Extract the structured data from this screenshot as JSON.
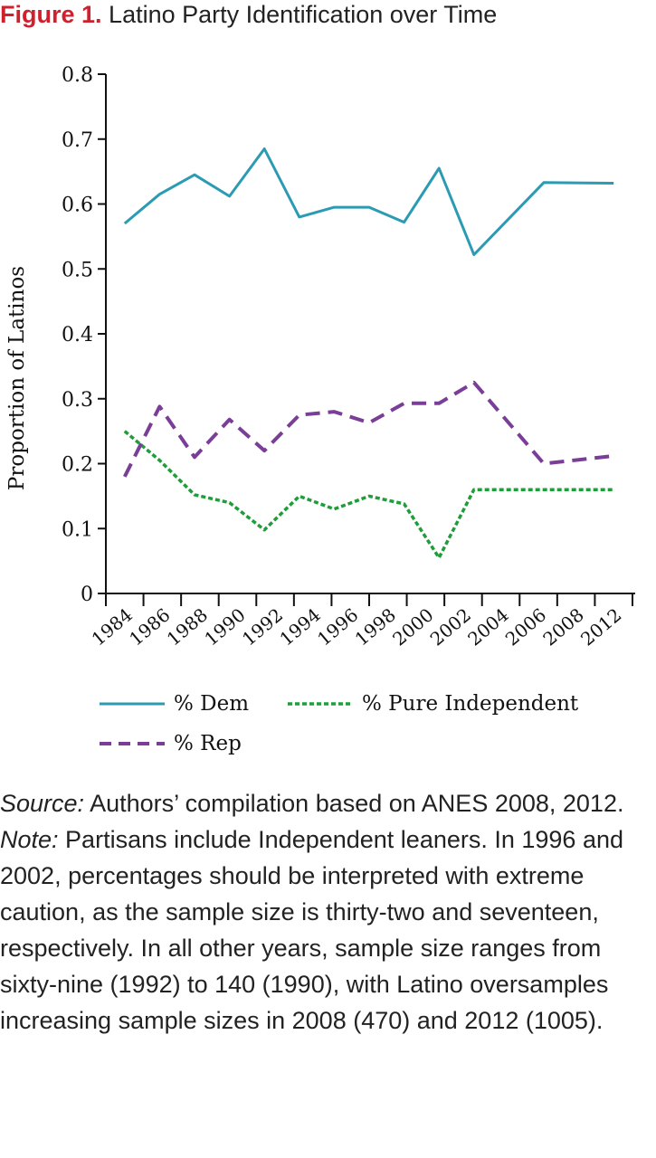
{
  "figure": {
    "label": "Figure 1.",
    "title": "Latino Party Identification over Time"
  },
  "colors": {
    "dem": "#2a9bb2",
    "independent": "#1f9d3a",
    "rep": "#7a3d98",
    "title_label": "#d0202e",
    "axis": "#111111"
  },
  "chart_data": {
    "type": "line",
    "title": "Latino Party Identification over Time",
    "xlabel": "",
    "ylabel": "Proportion of Latinos",
    "xlim": [
      1984,
      2012
    ],
    "ylim": [
      0,
      0.8
    ],
    "x_ticks": [
      "1984",
      "1986",
      "1988",
      "1990",
      "1992",
      "1994",
      "1996",
      "1998",
      "2000",
      "2002",
      "2004",
      "2006",
      "2008",
      "2012"
    ],
    "y_ticks": [
      "0",
      "0.1",
      "0.2",
      "0.3",
      "0.4",
      "0.5",
      "0.6",
      "0.7",
      "0.8"
    ],
    "x": [
      1984,
      1986,
      1988,
      1990,
      1992,
      1994,
      1996,
      1998,
      2000,
      2002,
      2004,
      2008,
      2012
    ],
    "grid": false,
    "legend_position": "bottom",
    "series": [
      {
        "name": "% Dem",
        "style": "solid",
        "color": "#2a9bb2",
        "values": [
          0.57,
          0.615,
          0.645,
          0.612,
          0.685,
          0.58,
          0.595,
          0.595,
          0.572,
          0.655,
          0.522,
          0.633,
          0.632
        ]
      },
      {
        "name": "% Pure Independent",
        "style": "dotted",
        "color": "#1f9d3a",
        "values": [
          0.25,
          0.205,
          0.152,
          0.14,
          0.098,
          0.15,
          0.13,
          0.15,
          0.138,
          0.055,
          0.16,
          0.16,
          0.16
        ]
      },
      {
        "name": "% Rep",
        "style": "dashed",
        "color": "#7a3d98",
        "values": [
          0.18,
          0.288,
          0.21,
          0.268,
          0.22,
          0.275,
          0.28,
          0.263,
          0.293,
          0.293,
          0.325,
          0.2,
          0.212
        ]
      }
    ]
  },
  "source": {
    "label": "Source:",
    "text": " Authors’ compilation based on ANES 2008, 2012."
  },
  "note": {
    "label": "Note:",
    "text": " Partisans include Independent leaners. In 1996 and 2002, percentages should be interpreted with extreme caution, as the sample size is thirty-two and seventeen, respectively. In all other years, sample size ranges from sixty-nine (1992) to 140 (1990), with Latino oversamples increasing sample sizes in 2008 (470) and 2012 (1005)."
  }
}
